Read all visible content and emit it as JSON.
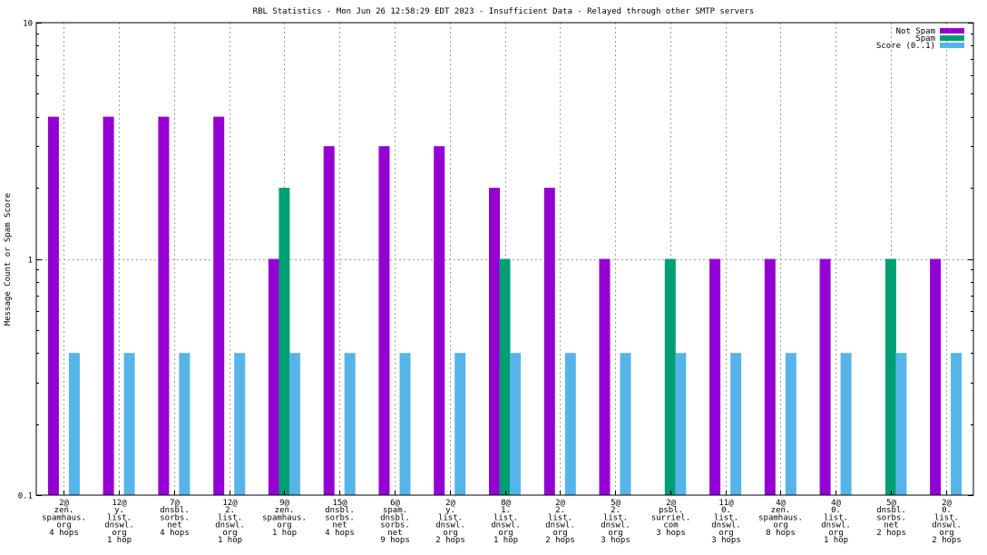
{
  "chart_data": {
    "type": "bar",
    "title": "RBL Statistics - Mon Jun 26 12:58:29 EDT 2023 - Insufficient Data - Relayed through other SMTP servers",
    "ylabel": "Message Count or Spam Score",
    "yscale": "log",
    "ylim": [
      0.1,
      10
    ],
    "yticks": [
      {
        "value": 0.1,
        "label": "0.1"
      },
      {
        "value": 1,
        "label": "1"
      },
      {
        "value": 10,
        "label": "10"
      }
    ],
    "grid": true,
    "legend_position": "top-right",
    "categories": [
      [
        "2@",
        "zen.",
        "spamhaus.",
        "org",
        "4 hops"
      ],
      [
        "12@",
        "y.",
        "list.",
        "dnswl.",
        "org",
        "1 hop"
      ],
      [
        "7@",
        "dnsbl.",
        "sorbs.",
        "net",
        "4 hops"
      ],
      [
        "12@",
        "2.",
        "list.",
        "dnswl.",
        "org",
        "1 hop"
      ],
      [
        "9@",
        "zen.",
        "spamhaus.",
        "org",
        "1 hop"
      ],
      [
        "15@",
        "dnsbl.",
        "sorbs.",
        "net",
        "4 hops"
      ],
      [
        "6@",
        "spam.",
        "dnsbl.",
        "sorbs.",
        "net",
        "9 hops"
      ],
      [
        "2@",
        "y.",
        "list.",
        "dnswl.",
        "org",
        "2 hops"
      ],
      [
        "8@",
        "1.",
        "list.",
        "dnswl.",
        "org",
        "1 hop"
      ],
      [
        "2@",
        "2.",
        "list.",
        "dnswl.",
        "org",
        "2 hops"
      ],
      [
        "5@",
        "2.",
        "list.",
        "dnswl.",
        "org",
        "3 hops"
      ],
      [
        "2@",
        "psbl.",
        "surriel.",
        "com",
        "3 hops"
      ],
      [
        "11@",
        "0.",
        "list.",
        "dnswl.",
        "org",
        "3 hops"
      ],
      [
        "4@",
        "zen.",
        "spamhaus.",
        "org",
        "8 hops"
      ],
      [
        "4@",
        "0.",
        "list.",
        "dnswl.",
        "org",
        "1 hop"
      ],
      [
        "5@",
        "dnsbl.",
        "sorbs.",
        "net",
        "2 hops"
      ],
      [
        "2@",
        "0.",
        "list.",
        "dnswl.",
        "org",
        "2 hops"
      ]
    ],
    "series": [
      {
        "name": "Not Spam",
        "color": "#9400d3",
        "values": [
          4,
          4,
          4,
          4,
          1,
          3,
          3,
          3,
          2,
          2,
          1,
          null,
          1,
          1,
          1,
          null,
          1
        ]
      },
      {
        "name": "Spam",
        "color": "#009e73",
        "values": [
          null,
          null,
          null,
          null,
          2,
          null,
          null,
          null,
          1,
          null,
          null,
          1,
          null,
          null,
          null,
          1,
          null
        ]
      },
      {
        "name": "Score (0..1)",
        "color": "#56b4e9",
        "values": [
          0.4,
          0.4,
          0.4,
          0.4,
          0.4,
          0.4,
          0.4,
          0.4,
          0.4,
          0.4,
          0.4,
          0.4,
          0.4,
          0.4,
          0.4,
          0.4,
          0.4
        ]
      }
    ]
  }
}
